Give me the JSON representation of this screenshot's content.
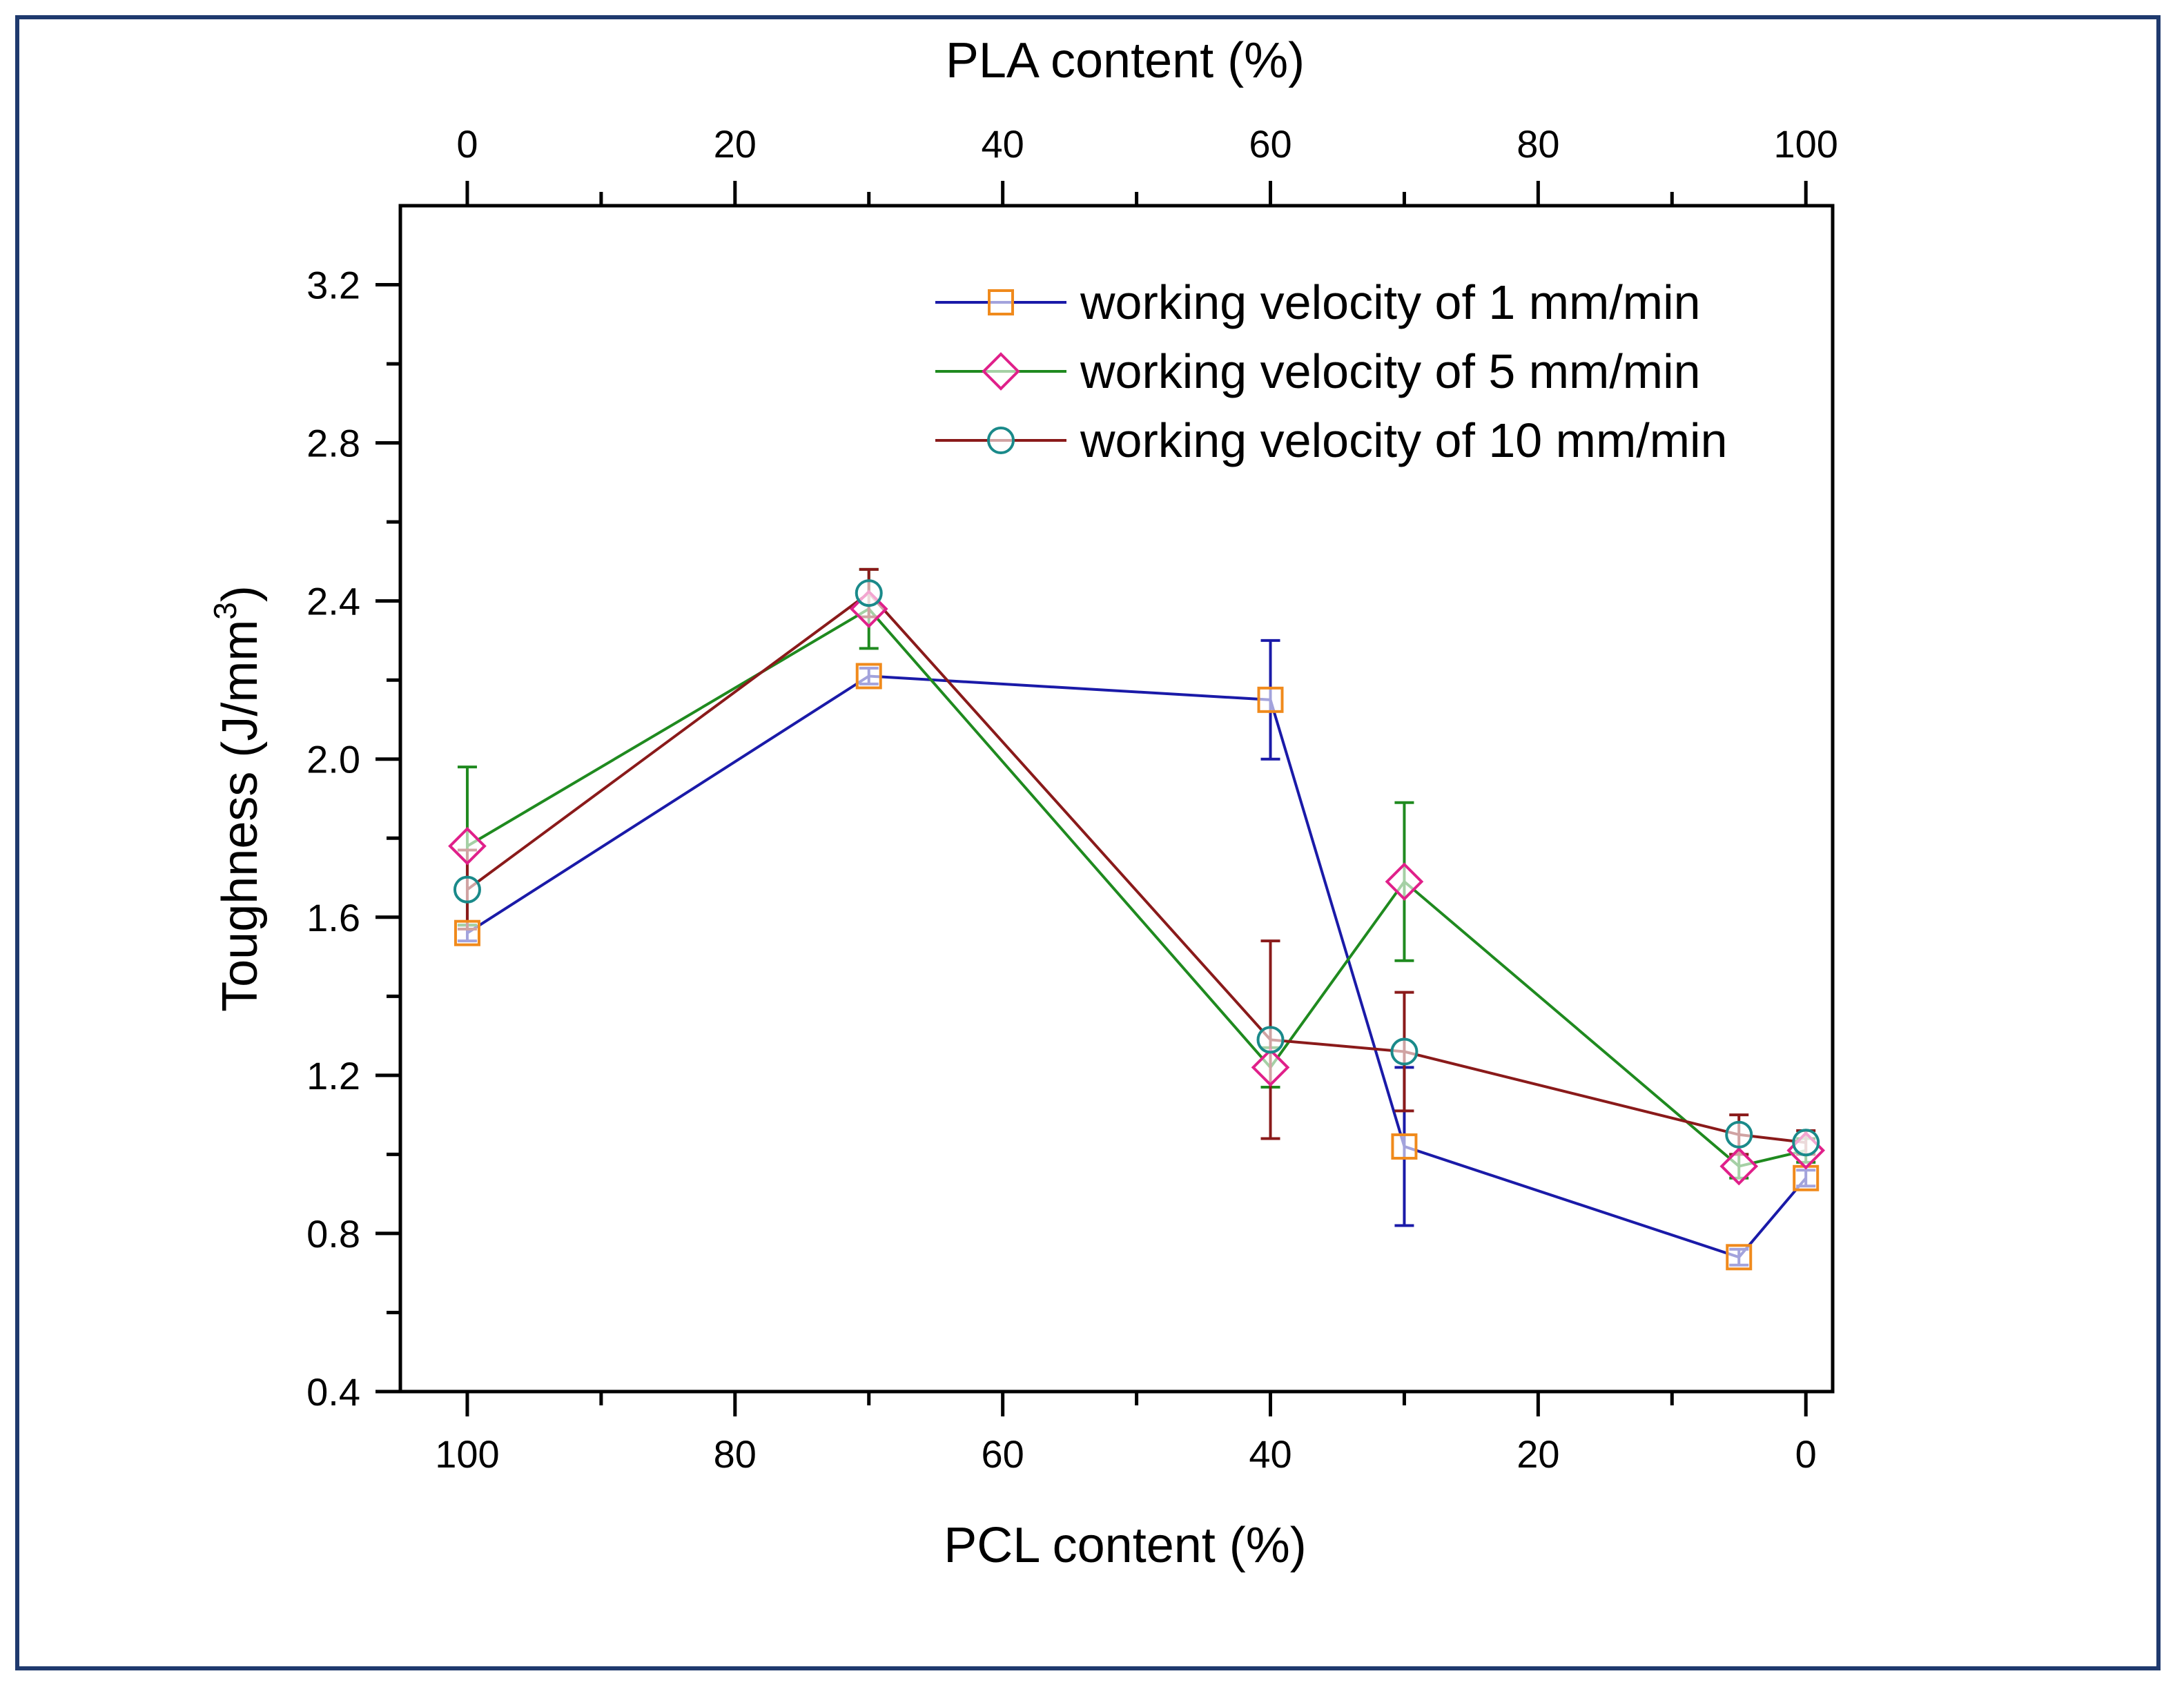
{
  "chart_data": {
    "type": "line",
    "ylabel": "Toughness (J/mm",
    "ylabel_sup": "3",
    "ylabel_close": ")",
    "xlabel": "PCL content (%)",
    "x2label": "PLA content (%)",
    "xlim": [
      105,
      -2
    ],
    "ylim": [
      0.4,
      3.4
    ],
    "x2lim": [
      -5,
      102
    ],
    "xticks": [
      100,
      80,
      60,
      40,
      20,
      0
    ],
    "xtick_labels": [
      "100",
      "80",
      "60",
      "40",
      "20",
      "0"
    ],
    "x2ticks": [
      0,
      20,
      40,
      60,
      80,
      100
    ],
    "x2tick_labels": [
      "0",
      "20",
      "40",
      "60",
      "80",
      "100"
    ],
    "yticks": [
      0.4,
      0.8,
      1.2,
      1.6,
      2.0,
      2.4,
      2.8,
      3.2
    ],
    "ytick_labels": [
      "0.4",
      "0.8",
      "1.2",
      "1.6",
      "2.0",
      "2.4",
      "2.8",
      "3.2"
    ],
    "x": [
      100,
      70,
      40,
      30,
      5,
      0
    ],
    "series": [
      {
        "name": "working velocity of 1 mm/min",
        "line_color": "#1a1aa8",
        "marker": "square",
        "marker_color": "#f08a1c",
        "values": [
          1.56,
          2.21,
          2.15,
          1.02,
          0.74,
          0.94
        ],
        "errors": [
          0.02,
          0.02,
          0.15,
          0.2,
          0.02,
          0.02
        ]
      },
      {
        "name": "working velocity of 5 mm/min",
        "line_color": "#1f8a1f",
        "marker": "diamond",
        "marker_color": "#e0208a",
        "values": [
          1.78,
          2.38,
          1.22,
          1.69,
          0.97,
          1.01
        ],
        "errors": [
          0.2,
          0.1,
          0.05,
          0.2,
          0.03,
          0.03
        ]
      },
      {
        "name": "working velocity of 10 mm/min",
        "line_color": "#8a1a1a",
        "marker": "circle",
        "marker_color": "#1a8a8a",
        "values": [
          1.67,
          2.42,
          1.29,
          1.26,
          1.05,
          1.03
        ],
        "errors": [
          0.1,
          0.06,
          0.25,
          0.15,
          0.05,
          0.03
        ]
      }
    ],
    "legend_position": "top-right"
  }
}
